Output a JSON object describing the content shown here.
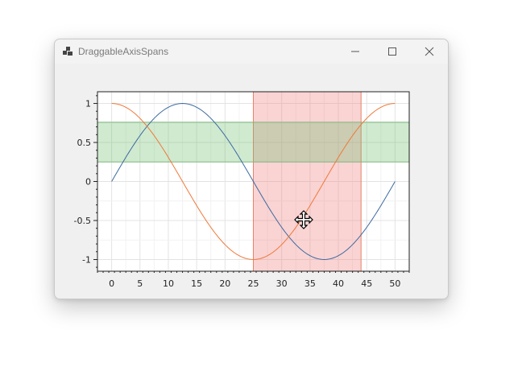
{
  "window": {
    "title": "DraggableAxisSpans",
    "controls": [
      "minimize",
      "maximize",
      "close"
    ]
  },
  "icons": {
    "app": "app-window-icon",
    "minimize": "minimize-icon",
    "maximize": "maximize-icon",
    "close": "close-icon",
    "cursor": "move-cursor-icon"
  },
  "colors": {
    "sin_line": "#3b6aa0",
    "cos_line": "#f07838",
    "vertical_span_fill": "#f08080",
    "vertical_span_edge": "#e8826a",
    "horizontal_span_fill": "#6cbf6c",
    "horizontal_span_edge": "#7fb87f"
  },
  "chart_data": {
    "type": "line",
    "title": "",
    "xlabel": "",
    "ylabel": "",
    "xlim": [
      -2.5,
      52.5
    ],
    "ylim": [
      -1.15,
      1.15
    ],
    "x_ticks": [
      0,
      5,
      10,
      15,
      20,
      25,
      30,
      35,
      40,
      45,
      50
    ],
    "x_tick_labels": [
      "0",
      "5",
      "10",
      "15",
      "20",
      "25",
      "30",
      "35",
      "40",
      "45",
      "50"
    ],
    "y_ticks": [
      1,
      0.5,
      0,
      -0.5,
      -1
    ],
    "y_tick_labels": [
      "1",
      "0.5",
      "0",
      "-0.5",
      "-1"
    ],
    "grid": true,
    "legend": "none",
    "series": [
      {
        "function": "sin",
        "period": 50,
        "x_start": 0,
        "x_end": 50,
        "color": "#3b6aa0"
      },
      {
        "function": "cos",
        "period": 50,
        "x_start": 0,
        "x_end": 50,
        "color": "#f07838"
      }
    ],
    "spans": [
      {
        "orientation": "vertical",
        "from": 25,
        "to": 44,
        "color": "#f08080"
      },
      {
        "orientation": "horizontal",
        "from": 0.25,
        "to": 0.76,
        "color": "#6cbf6c"
      }
    ]
  }
}
